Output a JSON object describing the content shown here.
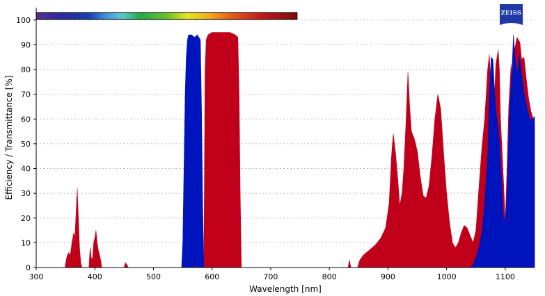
{
  "chart_data": {
    "type": "area",
    "xlabel": "Wavelength [nm]",
    "ylabel": "Efficiency / Transmittance [%]",
    "xlim": [
      300,
      1150
    ],
    "ylim": [
      0,
      105
    ],
    "xticks": [
      300,
      400,
      500,
      600,
      700,
      800,
      900,
      1000,
      1100
    ],
    "yticks": [
      0,
      10,
      20,
      30,
      40,
      50,
      60,
      70,
      80,
      90,
      100
    ],
    "grid": "horizontal dotted",
    "spectrum_bar": {
      "from_nm": 300,
      "to_nm": 745
    },
    "series": [
      {
        "color": "#c0001a",
        "points": [
          [
            349,
            0
          ],
          [
            352,
            4
          ],
          [
            355,
            6
          ],
          [
            358,
            5
          ],
          [
            361,
            10
          ],
          [
            364,
            14
          ],
          [
            366,
            12
          ],
          [
            368,
            22
          ],
          [
            370,
            32
          ],
          [
            372,
            20
          ],
          [
            374,
            8
          ],
          [
            376,
            2
          ],
          [
            378,
            0
          ],
          [
            390,
            0
          ],
          [
            392,
            8
          ],
          [
            394,
            4
          ],
          [
            396,
            3
          ],
          [
            398,
            10
          ],
          [
            400,
            12
          ],
          [
            402,
            15
          ],
          [
            404,
            10
          ],
          [
            406,
            7
          ],
          [
            408,
            5
          ],
          [
            410,
            3
          ],
          [
            412,
            0
          ],
          [
            450,
            0
          ],
          [
            452,
            2
          ],
          [
            455,
            1
          ],
          [
            457,
            0
          ],
          [
            586,
            0
          ],
          [
            588,
            80
          ],
          [
            590,
            92
          ],
          [
            593,
            94
          ],
          [
            600,
            95
          ],
          [
            610,
            95
          ],
          [
            620,
            95
          ],
          [
            630,
            95
          ],
          [
            640,
            94
          ],
          [
            644,
            93
          ],
          [
            646,
            70
          ],
          [
            648,
            30
          ],
          [
            650,
            0
          ],
          [
            832,
            0
          ],
          [
            834,
            3
          ],
          [
            837,
            0
          ],
          [
            848,
            0
          ],
          [
            852,
            3
          ],
          [
            858,
            5
          ],
          [
            868,
            7
          ],
          [
            878,
            9
          ],
          [
            888,
            12
          ],
          [
            896,
            16
          ],
          [
            902,
            26
          ],
          [
            906,
            45
          ],
          [
            909,
            54
          ],
          [
            913,
            46
          ],
          [
            917,
            35
          ],
          [
            920,
            25
          ],
          [
            924,
            30
          ],
          [
            927,
            40
          ],
          [
            931,
            60
          ],
          [
            934,
            79
          ],
          [
            937,
            65
          ],
          [
            940,
            55
          ],
          [
            945,
            52
          ],
          [
            950,
            47
          ],
          [
            955,
            37
          ],
          [
            960,
            29
          ],
          [
            965,
            28
          ],
          [
            970,
            33
          ],
          [
            975,
            45
          ],
          [
            980,
            60
          ],
          [
            985,
            70
          ],
          [
            990,
            64
          ],
          [
            995,
            46
          ],
          [
            1000,
            30
          ],
          [
            1005,
            18
          ],
          [
            1010,
            10
          ],
          [
            1015,
            8
          ],
          [
            1020,
            10
          ],
          [
            1025,
            14
          ],
          [
            1030,
            17
          ],
          [
            1035,
            16
          ],
          [
            1040,
            13
          ],
          [
            1045,
            10
          ],
          [
            1050,
            15
          ],
          [
            1055,
            32
          ],
          [
            1060,
            48
          ],
          [
            1065,
            60
          ],
          [
            1070,
            80
          ],
          [
            1073,
            86
          ],
          [
            1077,
            62
          ],
          [
            1080,
            60
          ],
          [
            1084,
            82
          ],
          [
            1088,
            88
          ],
          [
            1090,
            80
          ],
          [
            1092,
            60
          ],
          [
            1095,
            45
          ],
          [
            1098,
            30
          ],
          [
            1100,
            18
          ],
          [
            1103,
            40
          ],
          [
            1106,
            65
          ],
          [
            1110,
            82
          ],
          [
            1113,
            70
          ],
          [
            1116,
            88
          ],
          [
            1120,
            93
          ],
          [
            1125,
            91
          ],
          [
            1128,
            84
          ],
          [
            1132,
            85
          ],
          [
            1136,
            76
          ],
          [
            1140,
            68
          ],
          [
            1144,
            63
          ],
          [
            1148,
            60
          ],
          [
            1150,
            58
          ]
        ]
      },
      {
        "color": "#0014be",
        "points": [
          [
            548,
            0
          ],
          [
            550,
            10
          ],
          [
            552,
            40
          ],
          [
            554,
            70
          ],
          [
            556,
            85
          ],
          [
            558,
            92
          ],
          [
            560,
            94
          ],
          [
            565,
            94
          ],
          [
            570,
            93
          ],
          [
            575,
            94
          ],
          [
            580,
            92
          ],
          [
            582,
            65
          ],
          [
            584,
            25
          ],
          [
            586,
            0
          ],
          [
            1040,
            0
          ],
          [
            1045,
            1
          ],
          [
            1050,
            4
          ],
          [
            1055,
            8
          ],
          [
            1060,
            14
          ],
          [
            1065,
            26
          ],
          [
            1070,
            45
          ],
          [
            1073,
            70
          ],
          [
            1076,
            85
          ],
          [
            1079,
            84
          ],
          [
            1082,
            70
          ],
          [
            1085,
            62
          ],
          [
            1088,
            57
          ],
          [
            1091,
            48
          ],
          [
            1094,
            35
          ],
          [
            1097,
            20
          ],
          [
            1100,
            19
          ],
          [
            1103,
            30
          ],
          [
            1107,
            62
          ],
          [
            1111,
            77
          ],
          [
            1114,
            94
          ],
          [
            1117,
            84
          ],
          [
            1120,
            78
          ],
          [
            1124,
            86
          ],
          [
            1128,
            78
          ],
          [
            1131,
            72
          ],
          [
            1134,
            68
          ],
          [
            1138,
            64
          ],
          [
            1142,
            60
          ],
          [
            1146,
            60
          ],
          [
            1150,
            61
          ]
        ]
      }
    ]
  }
}
